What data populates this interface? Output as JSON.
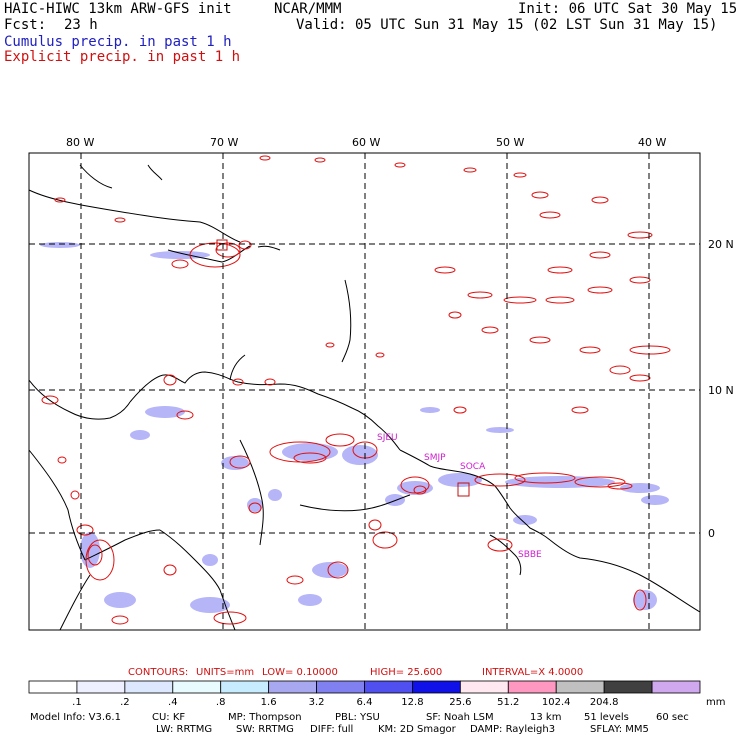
{
  "header": {
    "title_left": "HAIC-HIWC 13km ARW-GFS init",
    "title_center": "NCAR/MMM",
    "init": "Init: 06 UTC Sat 30 May 15",
    "fcst_label": "Fcst:",
    "fcst_value": "23 h",
    "valid": "Valid: 05 UTC Sun 31 May 15 (02 LST Sun 31 May 15)",
    "cumulus": "Cumulus precip. in past 1 h",
    "explicit": "Explicit precip. in past 1 h"
  },
  "map": {
    "lon_labels": [
      "80 W",
      "70 W",
      "60 W",
      "50 W",
      "40 W"
    ],
    "lat_labels": [
      "20 N",
      "10 N",
      "0"
    ],
    "stations": [
      "SJEU",
      "SMJP",
      "SOCA",
      "SBBE"
    ],
    "colors": {
      "coast": "#000000",
      "explicit": "#e01010",
      "cumulus": "#6a6af0",
      "grid": "#000000",
      "station": "#d020d0"
    }
  },
  "contours": {
    "label": "CONTOURS:",
    "units": "UNITS=mm",
    "low": "LOW= 0.10000",
    "high": "HIGH= 25.600",
    "interval": "INTERVAL=X 4.0000"
  },
  "colorbar": {
    "colors": [
      "#ffffff",
      "#eef0ff",
      "#dde8ff",
      "#e8fbff",
      "#c8ecff",
      "#a8a8f0",
      "#8080f0",
      "#5050f0",
      "#1010e8",
      "#ffe8f0",
      "#ff98c0",
      "#c0c0c0",
      "#404040",
      "#d0a8f0"
    ],
    "labels": [
      ".1",
      ".2",
      ".4",
      ".8",
      "1.6",
      "3.2",
      "6.4",
      "12.8",
      "25.6",
      "51.2",
      "102.4",
      "204.8"
    ],
    "unit": "mm"
  },
  "model_info": {
    "line1": [
      "Model Info: V3.6.1",
      "CU: KF",
      "MP: Thompson",
      "PBL: YSU",
      "SF: Noah LSM",
      "13 km",
      "51 levels",
      "60 sec"
    ],
    "line2": [
      "LW: RRTMG",
      "SW: RRTMG",
      "DIFF: full",
      "KM: 2D Smagor",
      "DAMP: Rayleigh3",
      "SFLAY: MM5"
    ]
  }
}
